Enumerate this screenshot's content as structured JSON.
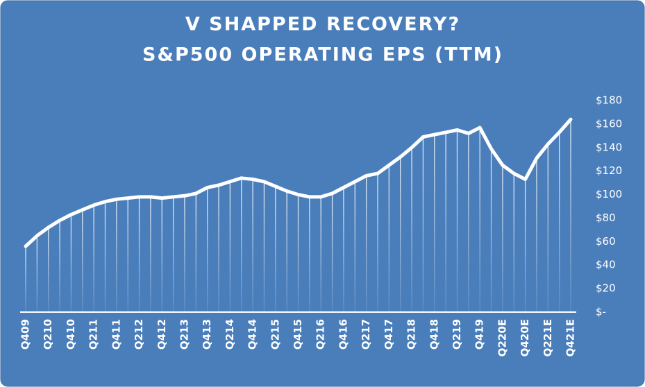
{
  "chart_data": {
    "type": "line",
    "title": "V SHAPPED RECOVERY?",
    "subtitle": "S&P500 OPERATING EPS (TTM)",
    "categories": [
      "Q409",
      null,
      "Q210",
      null,
      "Q410",
      null,
      "Q211",
      null,
      "Q411",
      null,
      "Q212",
      null,
      "Q412",
      null,
      "Q213",
      null,
      "Q413",
      null,
      "Q214",
      null,
      "Q414",
      null,
      "Q215",
      null,
      "Q415",
      null,
      "Q216",
      null,
      "Q416",
      null,
      "Q217",
      null,
      "Q417",
      null,
      "Q218",
      null,
      "Q418",
      null,
      "Q219",
      null,
      "Q419",
      null,
      "Q220E",
      null,
      "Q420E",
      null,
      "Q221E",
      null,
      "Q421E"
    ],
    "values": [
      56,
      65,
      72,
      78,
      83,
      87,
      91,
      94,
      96,
      97,
      98,
      98,
      97,
      98,
      99,
      101,
      106,
      108,
      111,
      114,
      113,
      111,
      107,
      103,
      100,
      98,
      98,
      101,
      106,
      111,
      116,
      118,
      125,
      132,
      140,
      149,
      151,
      153,
      155,
      152,
      157,
      139,
      125,
      118,
      113,
      131,
      143,
      153,
      164
    ],
    "color": "#ffffff",
    "ylim": [
      0,
      180
    ],
    "yticks": [
      {
        "value": 0,
        "label": "$-"
      },
      {
        "value": 20,
        "label": "$20"
      },
      {
        "value": 40,
        "label": "$40"
      },
      {
        "value": 60,
        "label": "$60"
      },
      {
        "value": 80,
        "label": "$80"
      },
      {
        "value": 100,
        "label": "$100"
      },
      {
        "value": 120,
        "label": "$120"
      },
      {
        "value": 140,
        "label": "$140"
      },
      {
        "value": 160,
        "label": "$160"
      },
      {
        "value": 180,
        "label": "$180"
      }
    ],
    "y_axis_side": "right",
    "drop_lines": true
  }
}
